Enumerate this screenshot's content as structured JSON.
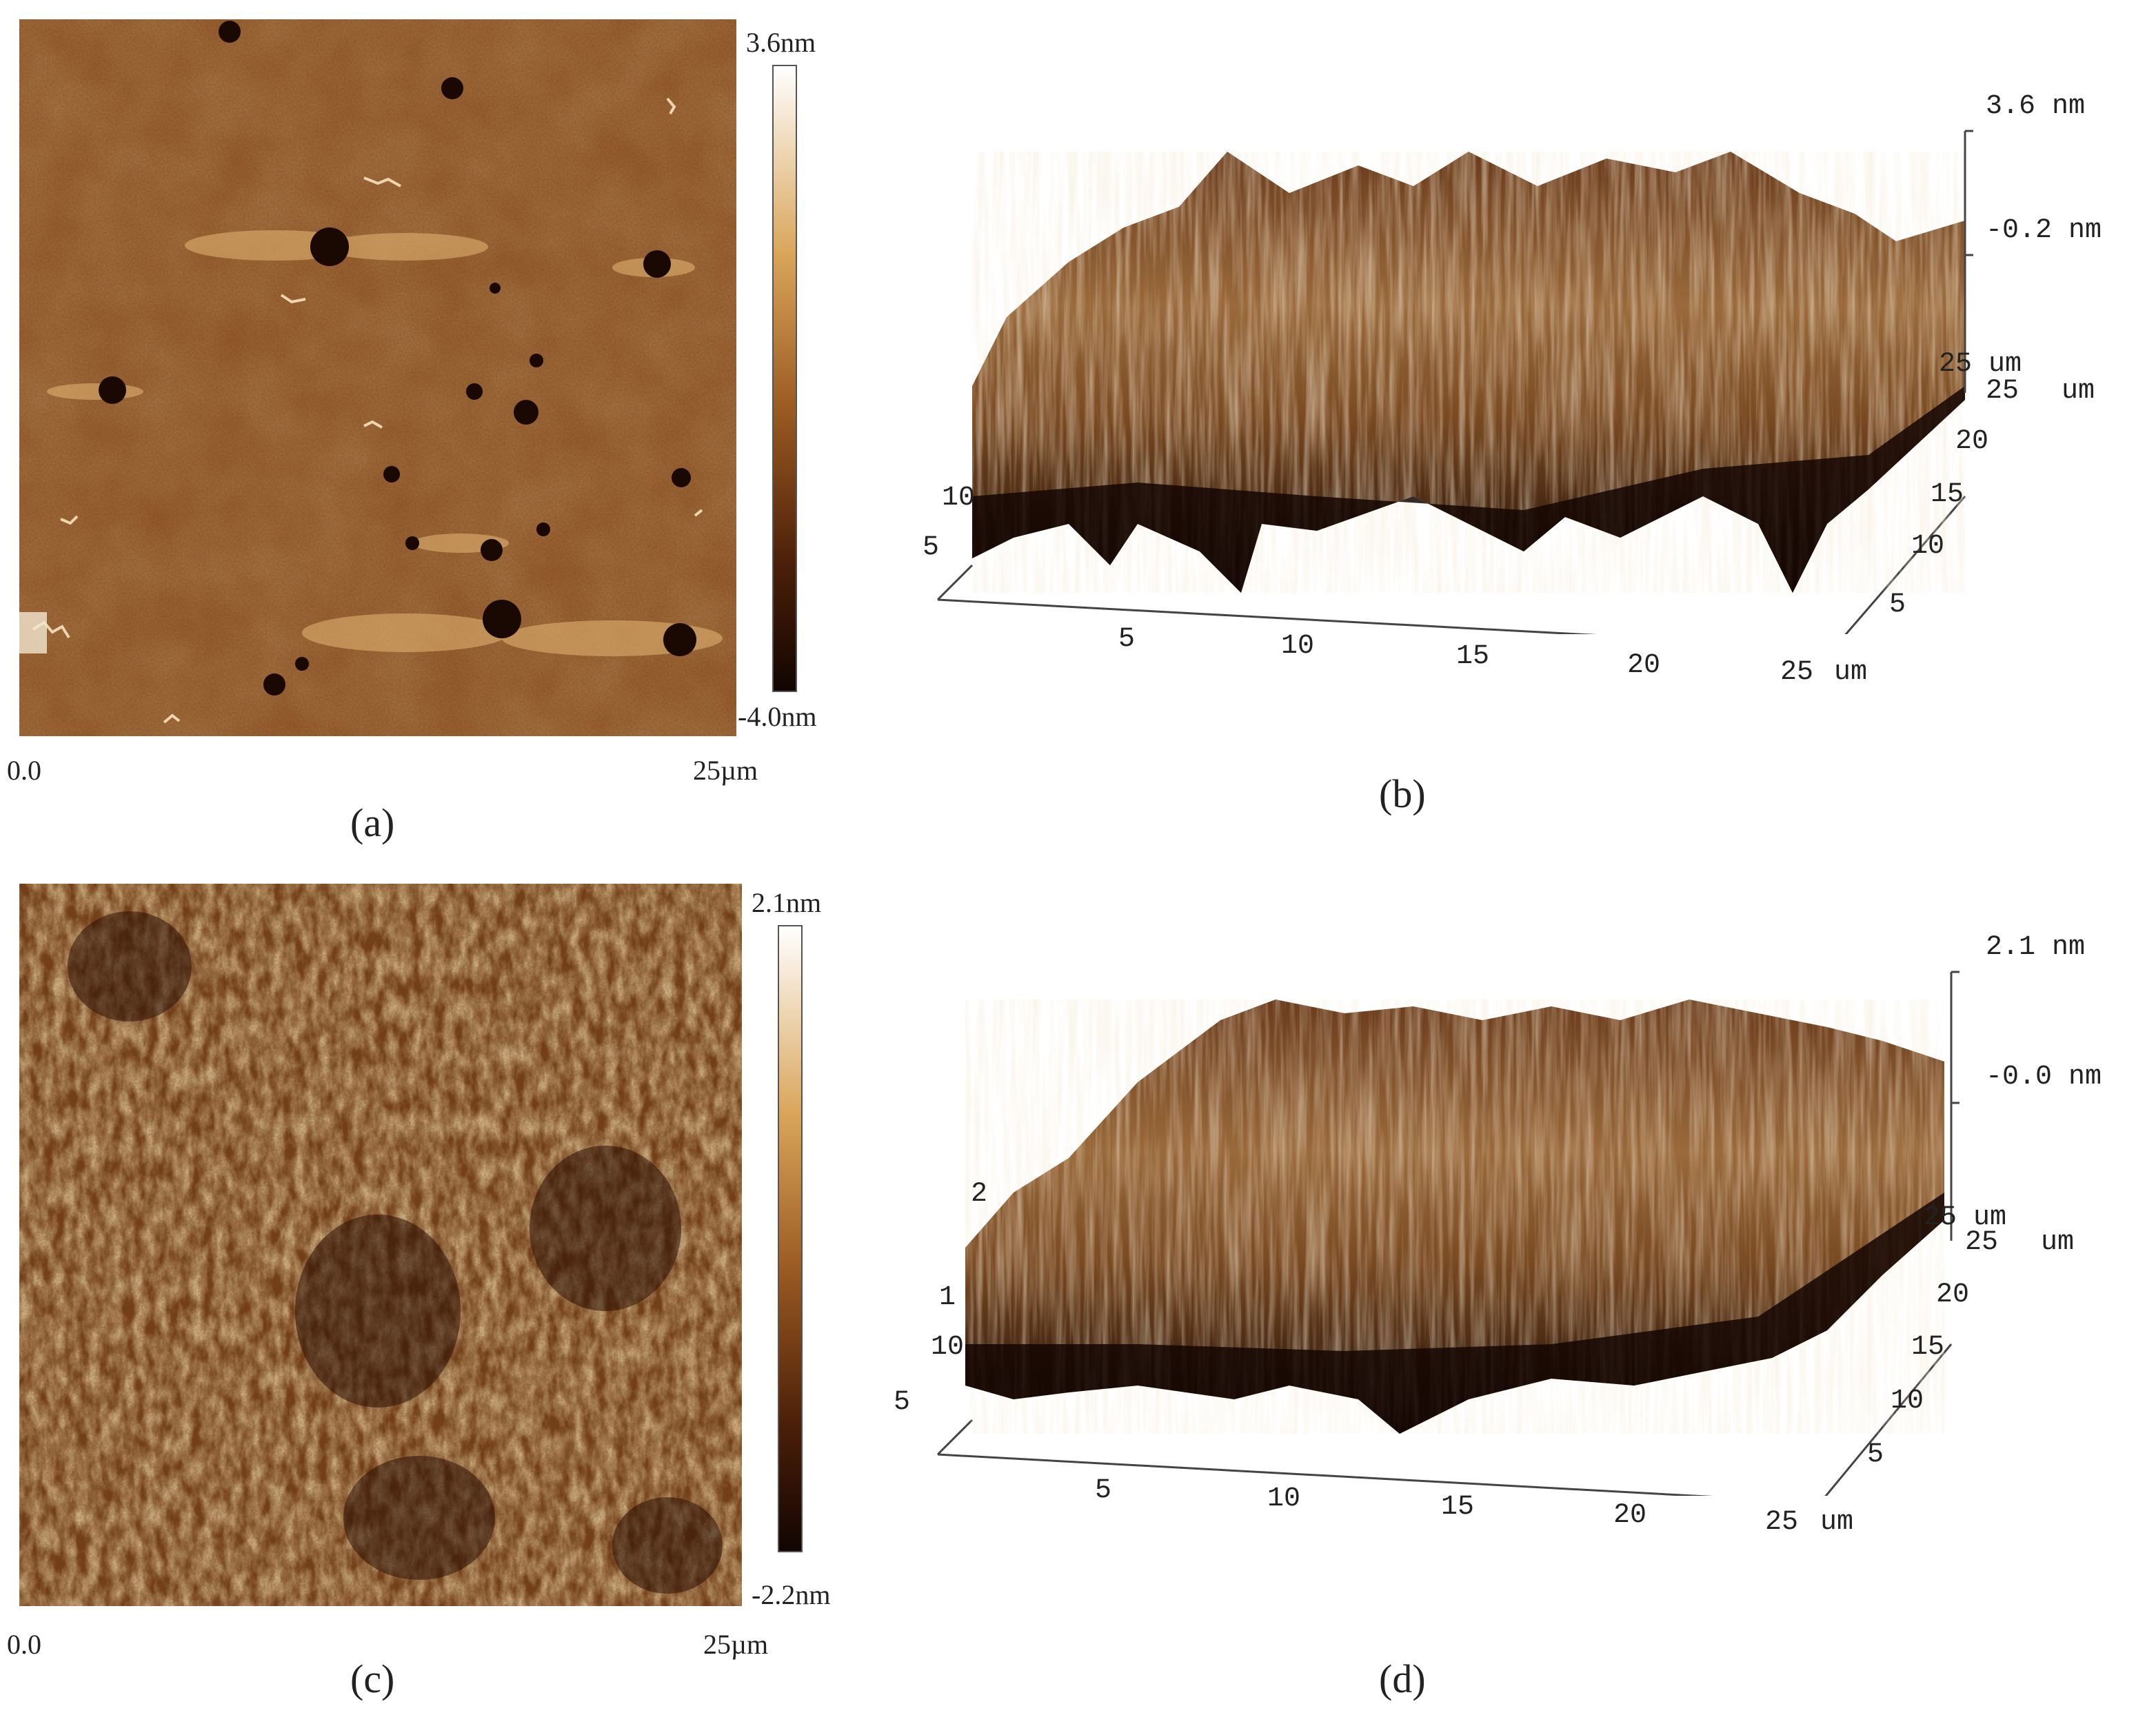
{
  "colors": {
    "afm_dark": "#1e0c03",
    "afm_mid": "#8a4b1c",
    "afm_light": "#fff8ea",
    "text": "#222222",
    "axis": "#444444"
  },
  "panels": {
    "a": {
      "letter": "(a)",
      "colorbar_max": "3.6nm",
      "colorbar_min": "-4.0nm",
      "x_start": "0.0",
      "x_end": "25µm"
    },
    "b": {
      "letter": "(b)",
      "z_max": "3.6 nm",
      "z_mid": "-0.2 nm",
      "x_ticks": [
        "5",
        "10",
        "15",
        "20",
        "25"
      ],
      "x_unit": "um",
      "y_ticks": [
        "5",
        "10",
        "15",
        "20",
        "25"
      ],
      "y_unit": "um",
      "y_top_label": "25 um",
      "left_ticks": [
        "10",
        "5"
      ]
    },
    "c": {
      "letter": "(c)",
      "colorbar_max": "2.1nm",
      "colorbar_min": "-2.2nm",
      "x_start": "0.0",
      "x_end": "25µm"
    },
    "d": {
      "letter": "(d)",
      "z_max": "2.1 nm",
      "z_mid": "-0.0 nm",
      "x_ticks": [
        "5",
        "10",
        "15",
        "20",
        "25"
      ],
      "x_unit": "um",
      "y_ticks": [
        "5",
        "10",
        "15",
        "20",
        "25"
      ],
      "y_unit": "um",
      "y_top_label": "25 um",
      "left_ticks": [
        "10",
        "5"
      ],
      "left_partial": [
        "2",
        "1"
      ]
    }
  }
}
